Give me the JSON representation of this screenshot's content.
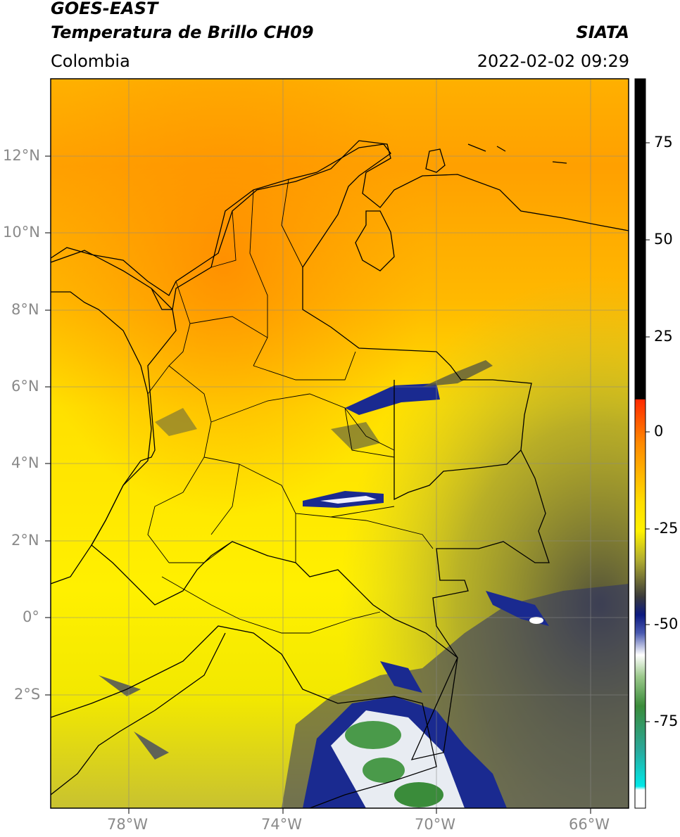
{
  "header": {
    "satellite": "GOES-EAST",
    "product": "Temperatura de Brillo CH09",
    "region": "Colombia",
    "source": "SIATA",
    "datetime": "2022-02-02 09:29"
  },
  "map": {
    "lat_ticks": [
      "12°N",
      "10°N",
      "8°N",
      "6°N",
      "4°N",
      "2°N",
      "0°",
      "2°S"
    ],
    "lon_ticks": [
      "78°W",
      "74°W",
      "70°W",
      "66°W"
    ],
    "gridlines": true,
    "extent": {
      "lon": [
        -80,
        -65
      ],
      "lat": [
        -5,
        14
      ]
    }
  },
  "colorbar": {
    "tick_labels": [
      "75",
      "50",
      "25",
      "0",
      "-25",
      "-50",
      "-75"
    ],
    "range": [
      -95,
      90
    ],
    "colors": {
      "warm": "#000000",
      "red": "#ff2a00",
      "orange": "#ff9a00",
      "yellow": "#ffee00",
      "olive": "#6f6f3c",
      "dark_blue": "#0c1a80",
      "white": "#ffffff",
      "green": "#3a8c3a",
      "cyan": "#00e0e0"
    }
  }
}
